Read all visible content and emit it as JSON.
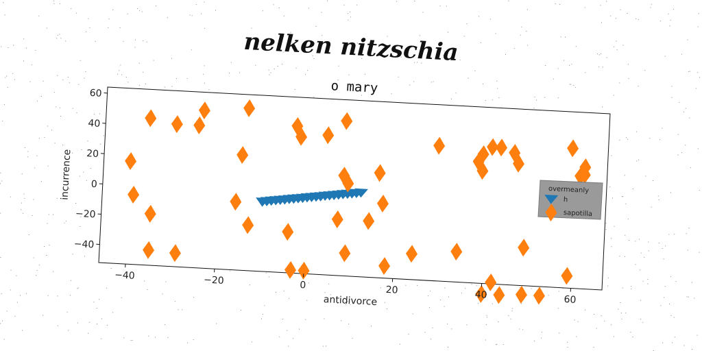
{
  "header": {
    "title": "nelken nitzschia"
  },
  "chart_data": {
    "type": "scatter",
    "title": "o mary",
    "xlabel": "antidivorce",
    "ylabel": "incurrence",
    "xlim": [
      -46,
      67
    ],
    "ylim": [
      -52,
      64
    ],
    "xticks": [
      -40,
      -20,
      0,
      20,
      40,
      60
    ],
    "yticks": [
      -40,
      -20,
      0,
      20,
      40,
      60
    ],
    "xtick_labels": [
      "−40",
      "−20",
      "0",
      "20",
      "40",
      "60"
    ],
    "ytick_labels": [
      "−40",
      "−20",
      "0",
      "20",
      "40",
      "60"
    ],
    "grid": false,
    "legend": {
      "title": "overmeanly",
      "placement": "right",
      "entries": [
        {
          "label": "h",
          "color": "#1f77b4",
          "marker": "triangle-down"
        },
        {
          "label": "sapotilla",
          "color": "#ff7f0e",
          "marker": "diamond"
        }
      ]
    },
    "series": [
      {
        "name": "h",
        "color": "#1f77b4",
        "marker": "triangle-down",
        "x": [
          -10,
          -9,
          -8,
          -7,
          -6,
          -5,
          -4,
          -3,
          -2,
          -1,
          0,
          1,
          2,
          3,
          4,
          5,
          6,
          7,
          8,
          9,
          10,
          11,
          12
        ],
        "y": [
          -6.0,
          -5.5,
          -5.0,
          -4.6,
          -4.2,
          -3.8,
          -3.3,
          -2.9,
          -2.5,
          -2.1,
          -1.6,
          -1.2,
          -0.8,
          -0.4,
          0.1,
          0.5,
          0.9,
          1.3,
          1.8,
          2.2,
          2.6,
          3.0,
          3.5
        ]
      },
      {
        "name": "sapotilla",
        "color": "#ff7f0e",
        "marker": "diamond",
        "x": [
          -40,
          -39,
          -36,
          -35,
          -35,
          -30,
          -29,
          -25,
          -24,
          -15,
          -14,
          -16,
          -13,
          -3,
          -2,
          -4,
          -3,
          0,
          4,
          8,
          8,
          9,
          7,
          9,
          14,
          16,
          17,
          18,
          24,
          29,
          34,
          38,
          39,
          40,
          39,
          41,
          42,
          43,
          44,
          46,
          47,
          49,
          49,
          53,
          57,
          59,
          59,
          61,
          61,
          62,
          62
        ],
        "y": [
          16,
          -6,
          45,
          -18,
          -42,
          42,
          -43,
          42,
          52,
          24,
          55,
          -7,
          -22,
          45,
          38,
          -25,
          -50,
          -50,
          40,
          50,
          14,
          -37,
          -15,
          9,
          -15,
          17,
          -3,
          -44,
          -35,
          37,
          -32,
          28,
          33,
          -59,
          22,
          38,
          -51,
          38,
          -59,
          35,
          28,
          -27,
          -58,
          -58,
          10,
          -44,
          40,
          22,
          22,
          23,
          28
        ]
      }
    ]
  }
}
